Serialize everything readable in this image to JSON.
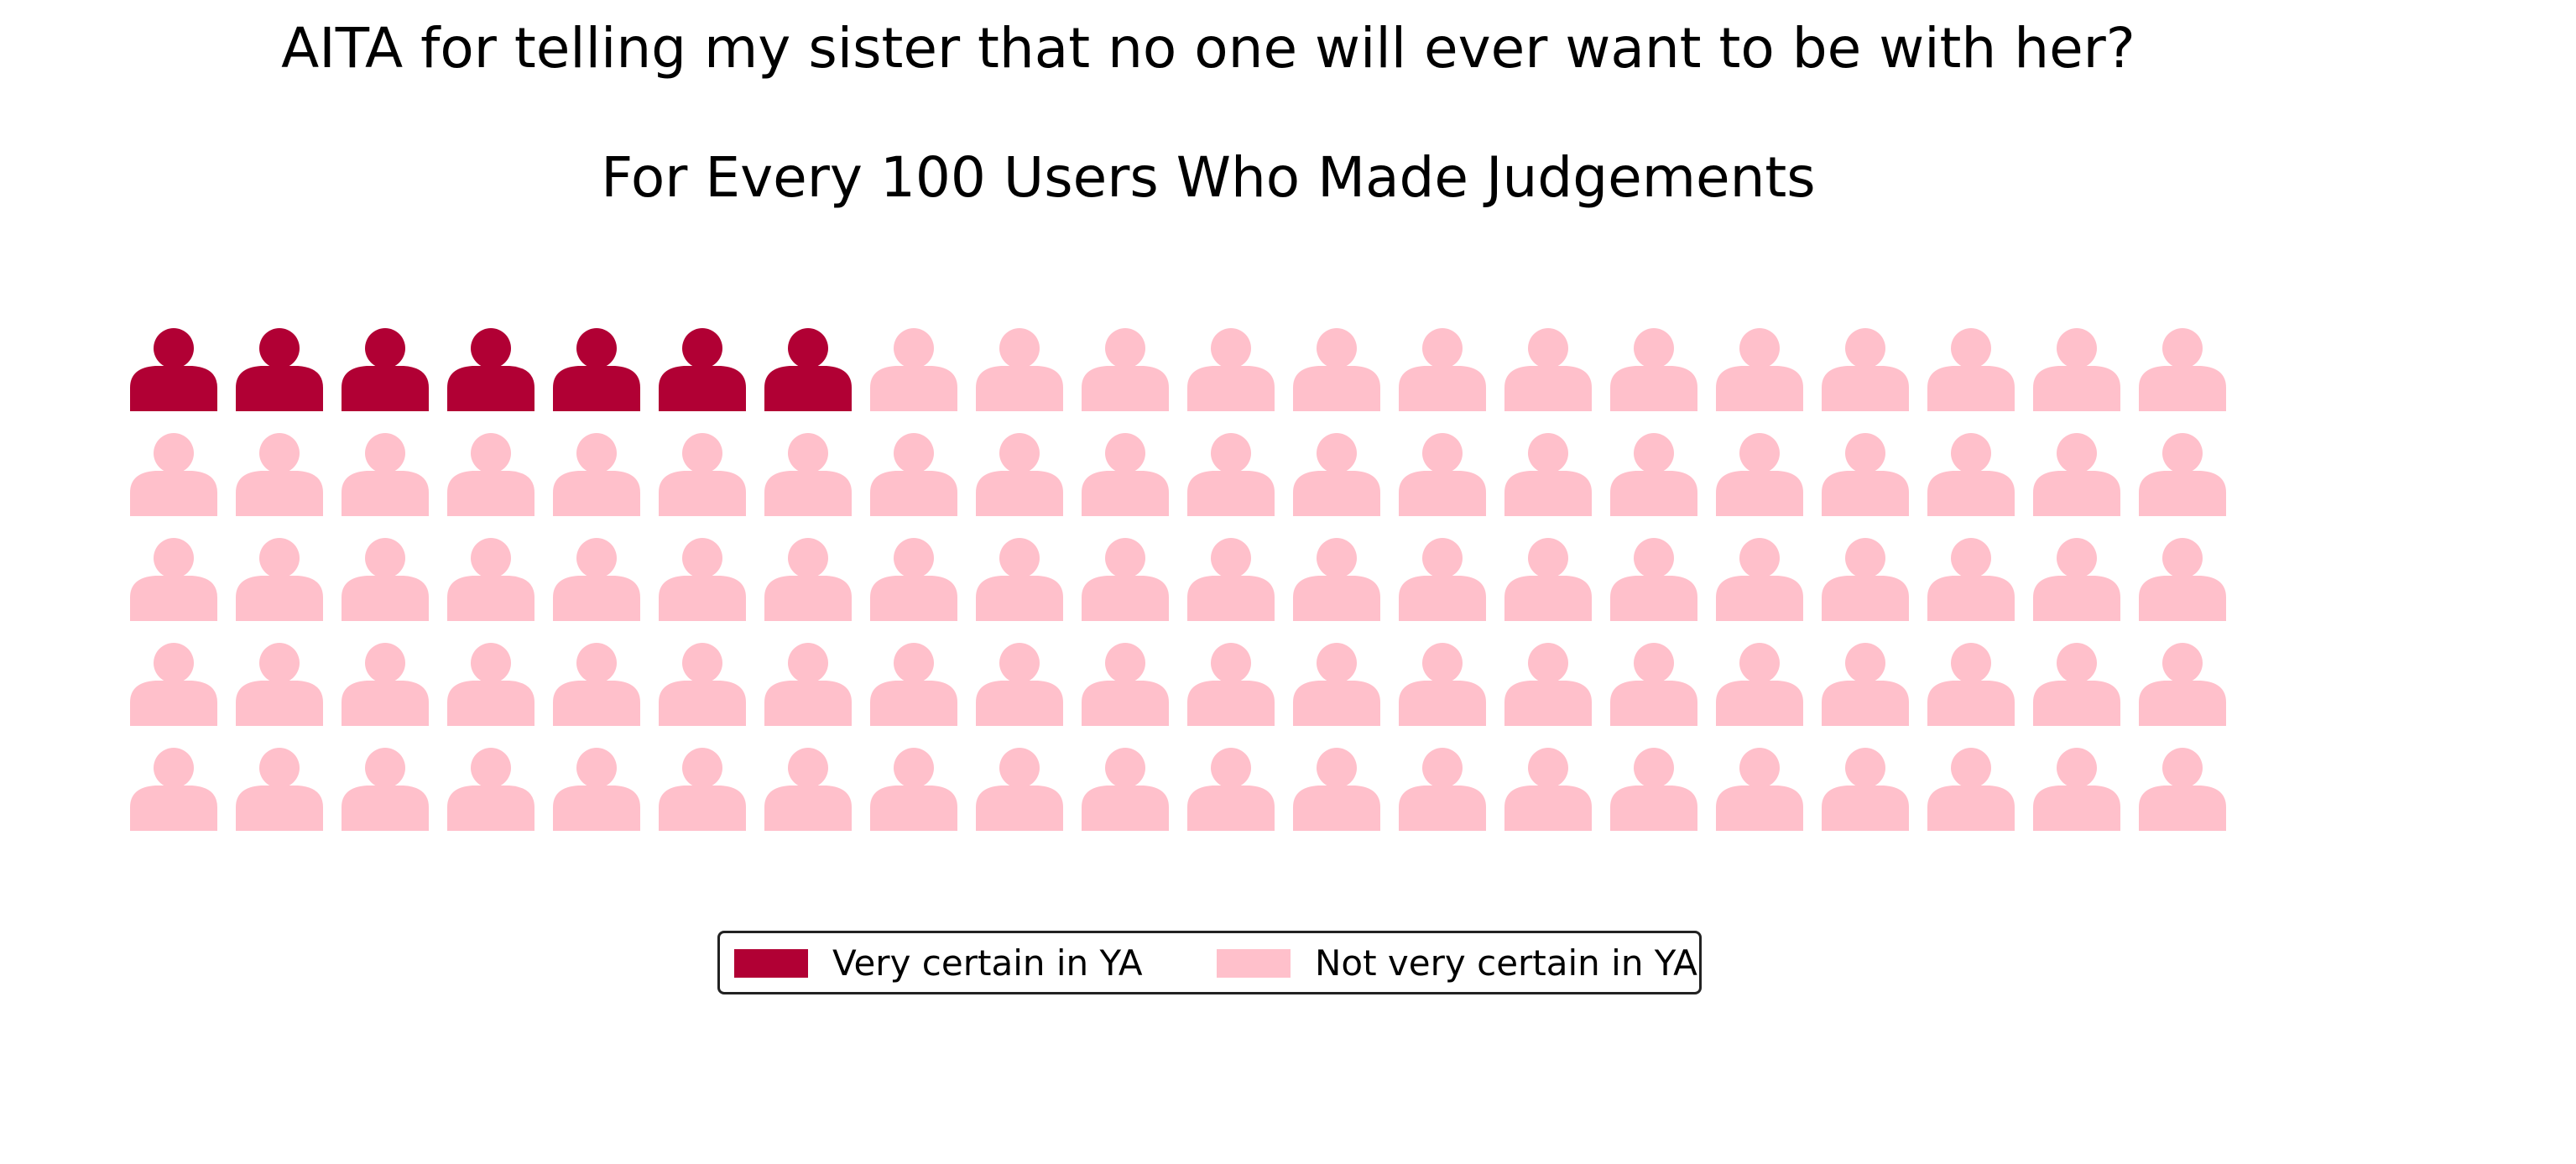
{
  "chart_data": {
    "type": "waffle",
    "title": "AITA for telling my sister that no one will ever want to be with her?",
    "subtitle": "For Every 100 Users Who Made Judgements",
    "rows": 5,
    "columns": 20,
    "total": 100,
    "categories": [
      {
        "name": "Very certain in YA",
        "value": 7,
        "color": "#b10034"
      },
      {
        "name": "Not very certain in YA",
        "value": 93,
        "color": "#ffc0cb"
      }
    ],
    "icon": "person-icon",
    "legend_position": "bottom-center"
  }
}
